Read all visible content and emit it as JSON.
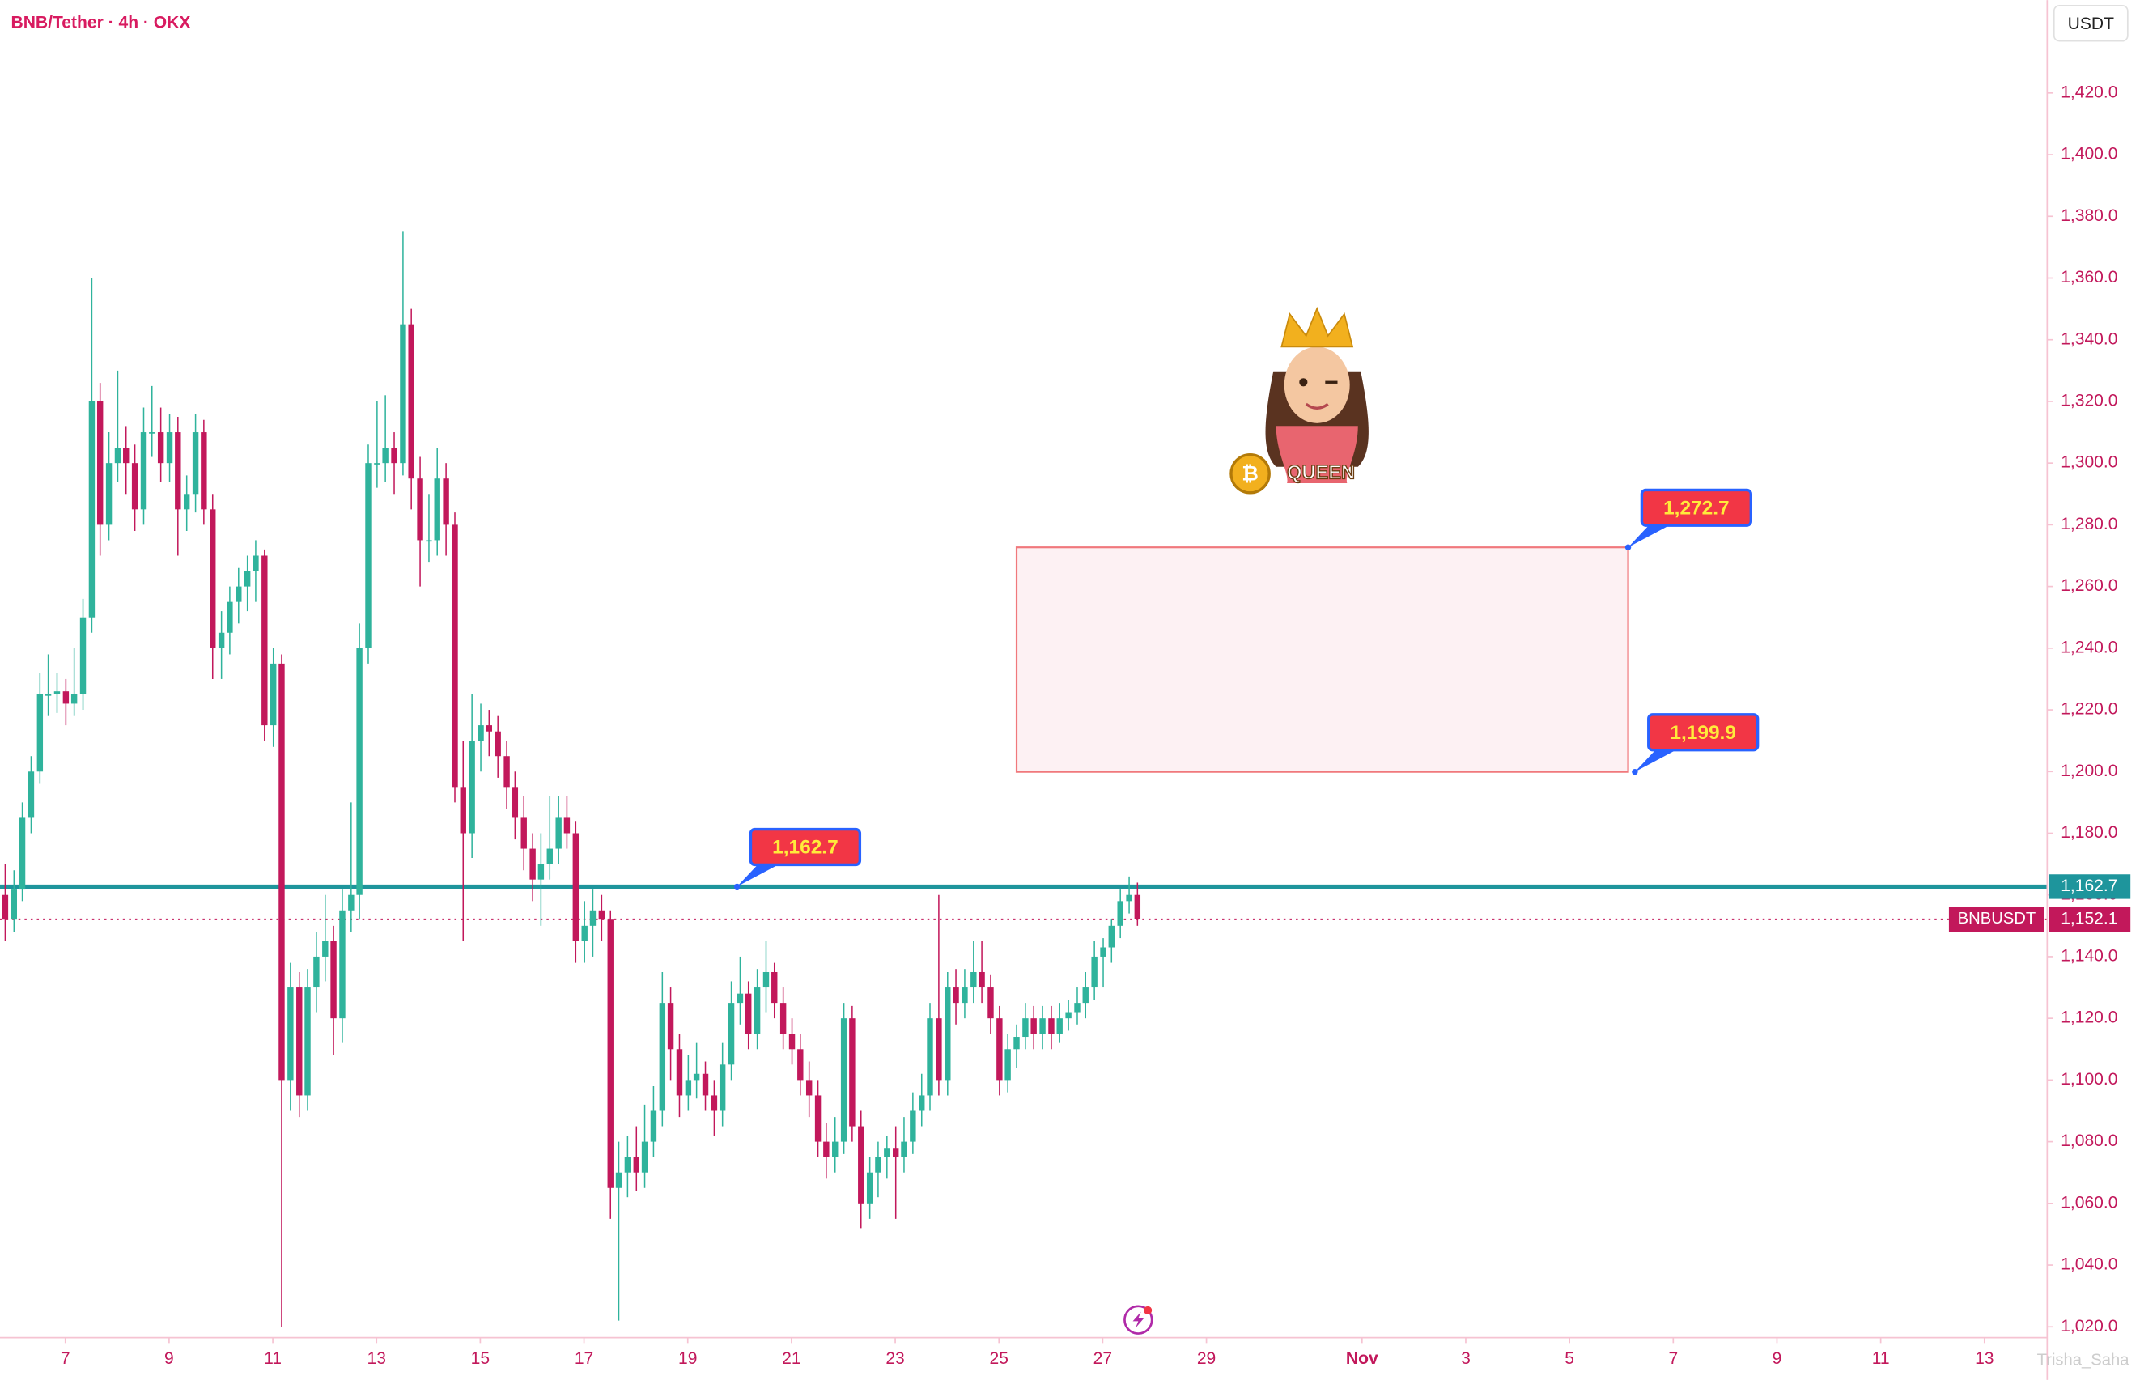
{
  "chart_data": {
    "type": "candlestick",
    "title": "BNB/Tether · 4h · OKX",
    "currency": "USDT",
    "watermark": "Trisha_Saha",
    "badge_text": "QUEEN",
    "up_color": "#2fb39c",
    "down_color": "#c2185b",
    "xlim": [
      5.74,
      45.21
    ],
    "ylim": [
      1016.5,
      1450.1
    ],
    "xticks": [
      7,
      9,
      11,
      13,
      15,
      17,
      19,
      21,
      23,
      25,
      27,
      29,
      {
        "value": 32,
        "label": "Nov"
      },
      {
        "value": 34,
        "label": "3"
      },
      {
        "value": 36,
        "label": "5"
      },
      {
        "value": 38,
        "label": "7"
      },
      {
        "value": 40,
        "label": "9"
      },
      {
        "value": 42,
        "label": "11"
      },
      {
        "value": 44,
        "label": "13"
      }
    ],
    "yticks": [
      {
        "value": 1020,
        "label": "1,020.0"
      },
      {
        "value": 1040,
        "label": "1,040.0"
      },
      {
        "value": 1060,
        "label": "1,060.0"
      },
      {
        "value": 1080,
        "label": "1,080.0"
      },
      {
        "value": 1100,
        "label": "1,100.0"
      },
      {
        "value": 1120,
        "label": "1,120.0"
      },
      {
        "value": 1140,
        "label": "1,140.0"
      },
      {
        "value": 1160,
        "label": "1,160.0"
      },
      {
        "value": 1180,
        "label": "1,180.0"
      },
      {
        "value": 1200,
        "label": "1,200.0"
      },
      {
        "value": 1220,
        "label": "1,220.0"
      },
      {
        "value": 1240,
        "label": "1,240.0"
      },
      {
        "value": 1260,
        "label": "1,260.0"
      },
      {
        "value": 1280,
        "label": "1,280.0"
      },
      {
        "value": 1300,
        "label": "1,300.0"
      },
      {
        "value": 1320,
        "label": "1,320.0"
      },
      {
        "value": 1340,
        "label": "1,340.0"
      },
      {
        "value": 1360,
        "label": "1,360.0"
      },
      {
        "value": 1380,
        "label": "1,380.0"
      },
      {
        "value": 1400,
        "label": "1,400.0"
      },
      {
        "value": 1420,
        "label": "1,420.0"
      }
    ],
    "x": [
      5.84,
      6.01,
      6.17,
      6.34,
      6.51,
      6.67,
      6.84,
      7.01,
      7.17,
      7.34,
      7.51,
      7.67,
      7.84,
      8.01,
      8.17,
      8.34,
      8.51,
      8.67,
      8.84,
      9.01,
      9.17,
      9.34,
      9.51,
      9.67,
      9.84,
      10.01,
      10.17,
      10.34,
      10.51,
      10.67,
      10.84,
      11.01,
      11.17,
      11.34,
      11.51,
      11.67,
      11.84,
      12.01,
      12.17,
      12.34,
      12.51,
      12.67,
      12.84,
      13.01,
      13.17,
      13.34,
      13.51,
      13.67,
      13.84,
      14.01,
      14.17,
      14.34,
      14.51,
      14.67,
      14.84,
      15.01,
      15.17,
      15.34,
      15.51,
      15.67,
      15.84,
      16.01,
      16.17,
      16.34,
      16.51,
      16.67,
      16.84,
      17.01,
      17.17,
      17.34,
      17.51,
      17.67,
      17.84,
      18.01,
      18.17,
      18.34,
      18.51,
      18.67,
      18.84,
      19.01,
      19.17,
      19.34,
      19.51,
      19.67,
      19.84,
      20.01,
      20.17,
      20.34,
      20.51,
      20.67,
      20.84,
      21.01,
      21.17,
      21.34,
      21.51,
      21.67,
      21.84,
      22.01,
      22.17,
      22.34,
      22.51,
      22.67,
      22.84,
      23.01,
      23.17,
      23.34,
      23.51,
      23.67,
      23.84,
      24.01,
      24.17,
      24.34,
      24.51,
      24.67,
      24.84,
      25.01,
      25.17,
      25.34,
      25.51,
      25.67,
      25.84,
      26.01,
      26.17,
      26.34,
      26.51,
      26.67,
      26.84,
      27.01,
      27.17,
      27.34,
      27.51,
      27.67
    ],
    "ohlc": [
      [
        1160,
        1170,
        1145,
        1152
      ],
      [
        1152,
        1168,
        1148,
        1162
      ],
      [
        1162,
        1190,
        1158,
        1185
      ],
      [
        1185,
        1205,
        1180,
        1200
      ],
      [
        1200,
        1232,
        1196,
        1225
      ],
      [
        1225,
        1238,
        1218,
        1225
      ],
      [
        1225,
        1232,
        1219,
        1226
      ],
      [
        1226,
        1230,
        1215,
        1222
      ],
      [
        1222,
        1240,
        1218,
        1225
      ],
      [
        1225,
        1256,
        1220,
        1250
      ],
      [
        1250,
        1360,
        1245,
        1320
      ],
      [
        1320,
        1326,
        1270,
        1280
      ],
      [
        1280,
        1310,
        1275,
        1300
      ],
      [
        1300,
        1330,
        1294,
        1305
      ],
      [
        1305,
        1312,
        1290,
        1300
      ],
      [
        1300,
        1306,
        1278,
        1285
      ],
      [
        1285,
        1318,
        1280,
        1310
      ],
      [
        1310,
        1325,
        1302,
        1310
      ],
      [
        1310,
        1318,
        1294,
        1300
      ],
      [
        1300,
        1316,
        1294,
        1310
      ],
      [
        1310,
        1315,
        1270,
        1285
      ],
      [
        1285,
        1296,
        1278,
        1290
      ],
      [
        1290,
        1316,
        1284,
        1310
      ],
      [
        1310,
        1314,
        1280,
        1285
      ],
      [
        1285,
        1290,
        1230,
        1240
      ],
      [
        1240,
        1252,
        1230,
        1245
      ],
      [
        1245,
        1260,
        1238,
        1255
      ],
      [
        1255,
        1266,
        1248,
        1260
      ],
      [
        1260,
        1270,
        1252,
        1265
      ],
      [
        1265,
        1275,
        1255,
        1270
      ],
      [
        1270,
        1272,
        1210,
        1215
      ],
      [
        1215,
        1240,
        1208,
        1235
      ],
      [
        1235,
        1238,
        1020,
        1100
      ],
      [
        1100,
        1138,
        1090,
        1130
      ],
      [
        1130,
        1135,
        1088,
        1095
      ],
      [
        1095,
        1136,
        1090,
        1130
      ],
      [
        1130,
        1148,
        1122,
        1140
      ],
      [
        1140,
        1160,
        1132,
        1145
      ],
      [
        1145,
        1150,
        1108,
        1120
      ],
      [
        1120,
        1162,
        1112,
        1155
      ],
      [
        1155,
        1190,
        1148,
        1160
      ],
      [
        1160,
        1248,
        1152,
        1240
      ],
      [
        1240,
        1306,
        1235,
        1300
      ],
      [
        1300,
        1320,
        1292,
        1300
      ],
      [
        1300,
        1322,
        1294,
        1305
      ],
      [
        1305,
        1310,
        1290,
        1300
      ],
      [
        1300,
        1375,
        1296,
        1345
      ],
      [
        1345,
        1350,
        1285,
        1295
      ],
      [
        1295,
        1302,
        1260,
        1275
      ],
      [
        1275,
        1290,
        1268,
        1275
      ],
      [
        1275,
        1305,
        1270,
        1295
      ],
      [
        1295,
        1300,
        1270,
        1280
      ],
      [
        1280,
        1284,
        1190,
        1195
      ],
      [
        1195,
        1210,
        1145,
        1180
      ],
      [
        1180,
        1225,
        1172,
        1210
      ],
      [
        1210,
        1222,
        1200,
        1215
      ],
      [
        1215,
        1220,
        1205,
        1213
      ],
      [
        1213,
        1218,
        1198,
        1205
      ],
      [
        1205,
        1210,
        1188,
        1195
      ],
      [
        1195,
        1200,
        1178,
        1185
      ],
      [
        1185,
        1192,
        1168,
        1175
      ],
      [
        1175,
        1180,
        1158,
        1165
      ],
      [
        1165,
        1180,
        1150,
        1170
      ],
      [
        1170,
        1192,
        1165,
        1175
      ],
      [
        1175,
        1192,
        1170,
        1185
      ],
      [
        1185,
        1192,
        1175,
        1180
      ],
      [
        1180,
        1184,
        1138,
        1145
      ],
      [
        1145,
        1158,
        1138,
        1150
      ],
      [
        1150,
        1162,
        1140,
        1155
      ],
      [
        1155,
        1160,
        1145,
        1152
      ],
      [
        1152,
        1155,
        1055,
        1065
      ],
      [
        1065,
        1080,
        1022,
        1070
      ],
      [
        1070,
        1082,
        1062,
        1075
      ],
      [
        1075,
        1085,
        1064,
        1070
      ],
      [
        1070,
        1092,
        1065,
        1080
      ],
      [
        1080,
        1098,
        1075,
        1090
      ],
      [
        1090,
        1135,
        1085,
        1125
      ],
      [
        1125,
        1130,
        1100,
        1110
      ],
      [
        1110,
        1115,
        1088,
        1095
      ],
      [
        1095,
        1108,
        1090,
        1100
      ],
      [
        1100,
        1112,
        1094,
        1102
      ],
      [
        1102,
        1106,
        1090,
        1095
      ],
      [
        1095,
        1100,
        1082,
        1090
      ],
      [
        1090,
        1112,
        1085,
        1105
      ],
      [
        1105,
        1132,
        1100,
        1125
      ],
      [
        1125,
        1140,
        1118,
        1128
      ],
      [
        1128,
        1132,
        1110,
        1115
      ],
      [
        1115,
        1136,
        1110,
        1130
      ],
      [
        1130,
        1145,
        1122,
        1135
      ],
      [
        1135,
        1138,
        1120,
        1125
      ],
      [
        1125,
        1130,
        1110,
        1115
      ],
      [
        1115,
        1120,
        1105,
        1110
      ],
      [
        1110,
        1115,
        1095,
        1100
      ],
      [
        1100,
        1106,
        1088,
        1095
      ],
      [
        1095,
        1100,
        1075,
        1080
      ],
      [
        1080,
        1086,
        1068,
        1075
      ],
      [
        1075,
        1088,
        1070,
        1080
      ],
      [
        1080,
        1125,
        1076,
        1120
      ],
      [
        1120,
        1124,
        1080,
        1085
      ],
      [
        1085,
        1090,
        1052,
        1060
      ],
      [
        1060,
        1075,
        1055,
        1070
      ],
      [
        1070,
        1080,
        1062,
        1075
      ],
      [
        1075,
        1082,
        1068,
        1078
      ],
      [
        1078,
        1085,
        1055,
        1075
      ],
      [
        1075,
        1088,
        1070,
        1080
      ],
      [
        1080,
        1096,
        1076,
        1090
      ],
      [
        1090,
        1102,
        1085,
        1095
      ],
      [
        1095,
        1125,
        1090,
        1120
      ],
      [
        1120,
        1160,
        1095,
        1100
      ],
      [
        1100,
        1135,
        1095,
        1130
      ],
      [
        1130,
        1136,
        1118,
        1125
      ],
      [
        1125,
        1136,
        1120,
        1130
      ],
      [
        1130,
        1145,
        1125,
        1135
      ],
      [
        1135,
        1145,
        1125,
        1130
      ],
      [
        1130,
        1134,
        1115,
        1120
      ],
      [
        1120,
        1124,
        1095,
        1100
      ],
      [
        1100,
        1115,
        1096,
        1110
      ],
      [
        1110,
        1118,
        1104,
        1114
      ],
      [
        1114,
        1125,
        1110,
        1120
      ],
      [
        1120,
        1124,
        1110,
        1115
      ],
      [
        1115,
        1124,
        1110,
        1120
      ],
      [
        1120,
        1124,
        1110,
        1115
      ],
      [
        1115,
        1125,
        1112,
        1120
      ],
      [
        1120,
        1126,
        1116,
        1122
      ],
      [
        1122,
        1130,
        1118,
        1125
      ],
      [
        1125,
        1135,
        1120,
        1130
      ],
      [
        1130,
        1145,
        1126,
        1140
      ],
      [
        1140,
        1146,
        1130,
        1143
      ],
      [
        1143,
        1152,
        1138,
        1150
      ],
      [
        1150,
        1162,
        1146,
        1158
      ],
      [
        1158,
        1166,
        1154,
        1160
      ],
      [
        1160,
        1164,
        1150,
        1152.1
      ]
    ],
    "price_lines": [
      {
        "value": 1162.7,
        "label": "1,162.7",
        "color": "#1e959c",
        "style": "solid"
      },
      {
        "name": "BNBUSDT",
        "value": 1152.1,
        "label": "1,152.1",
        "color": "#c2185b",
        "style": "dotted"
      }
    ],
    "zone": {
      "top": 1272.7,
      "bottom": 1199.9,
      "x": [
        25.34,
        37.13
      ],
      "color": "#f0787c"
    },
    "callouts": [
      {
        "value": 1162.7,
        "label": "1,162.7",
        "x": 19.95
      },
      {
        "value": 1272.7,
        "label": "1,272.7",
        "x": 37.13
      },
      {
        "value": 1199.9,
        "label": "1,199.9",
        "x": 37.26
      }
    ]
  }
}
